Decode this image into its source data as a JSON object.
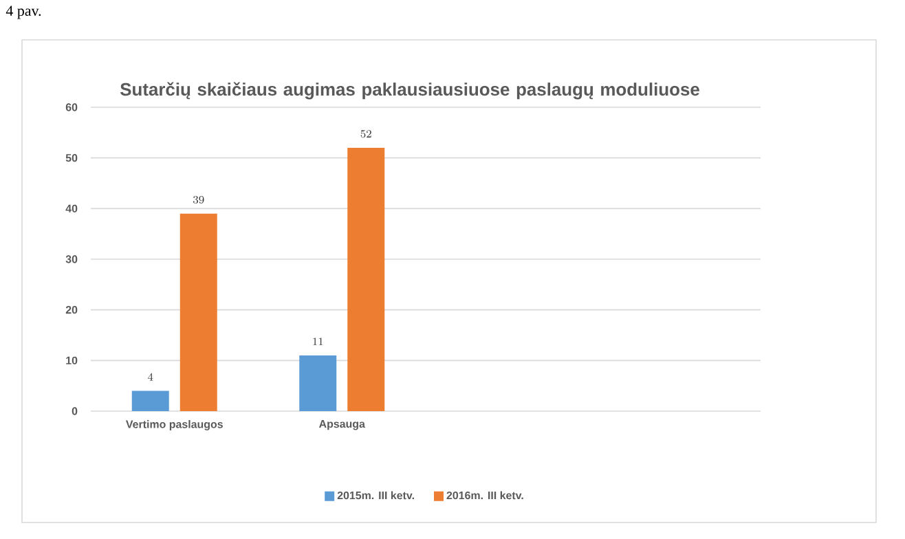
{
  "chart_data": {
    "type": "bar",
    "title": "Sutarčių skaičiaus augimas paklausiausiuose paslaugų moduliuose",
    "categories": [
      "Vertimo paslaugos",
      "Apsauga",
      null,
      null
    ],
    "series": [
      {
        "name": "2015m. III ketv.",
        "color": "#5b9bd5",
        "values": [
          4,
          11,
          null,
          null
        ]
      },
      {
        "name": "2016m. III ketv.",
        "color": "#ed7d31",
        "values": [
          39,
          52,
          null,
          null
        ]
      }
    ],
    "ylim": [
      0,
      60
    ],
    "yticks": [
      0,
      10,
      20,
      30,
      40,
      50,
      60
    ],
    "grid": "y",
    "legend": "bottom",
    "data_labels": true,
    "annotations": [
      "4 pav."
    ]
  }
}
